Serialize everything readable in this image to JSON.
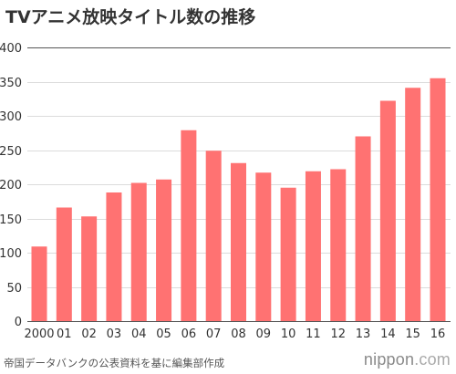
{
  "title": "TVアニメ放映タイトル数の推移",
  "source": "帝国データバンクの公表資料を基に編集部作成",
  "brand": {
    "prefix": "nippon",
    "suffix": ".com"
  },
  "colors": {
    "bar": "#ff7272",
    "grid": "#dcdcdc",
    "top_grid": "#555555",
    "axis": "#555555",
    "text": "#333333"
  },
  "chart_data": {
    "type": "bar",
    "categories": [
      "2000",
      "01",
      "02",
      "03",
      "04",
      "05",
      "06",
      "07",
      "08",
      "09",
      "10",
      "11",
      "12",
      "13",
      "14",
      "15",
      "16"
    ],
    "values": [
      109,
      166,
      153,
      188,
      202,
      207,
      279,
      249,
      231,
      217,
      195,
      219,
      222,
      270,
      322,
      341,
      355
    ],
    "title": "TVアニメ放映タイトル数の推移",
    "ylim": [
      0,
      400
    ],
    "yticks": [
      0,
      50,
      100,
      150,
      200,
      250,
      300,
      350,
      400
    ],
    "grid": true,
    "legend": "none"
  }
}
